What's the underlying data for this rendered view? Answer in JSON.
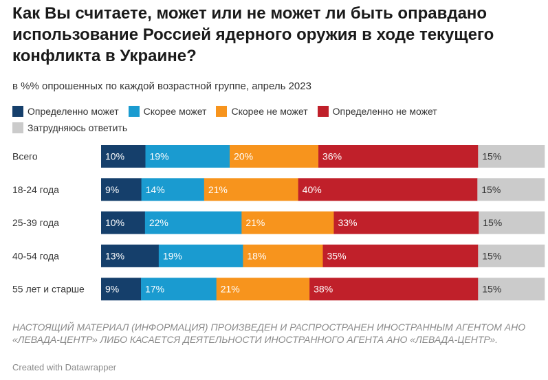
{
  "title": "Как Вы считаете, может или не может ли быть оправдано использование Россией ядерного оружия в ходе текущего конфликта в Украине?",
  "subtitle": "в %% опрошенных по каждой возрастной группе, апрель 2023",
  "footnote": "НАСТОЯЩИЙ МАТЕРИАЛ (ИНФОРМАЦИЯ) ПРОИЗВЕДЕН И РАСПРОСТРАНЕН ИНОСТРАННЫМ АГЕНТОМ АНО «ЛЕВАДА-ЦЕНТР» ЛИБО КАСАЕТСЯ ДЕЯТЕЛЬНОСТИ ИНОСТРАННОГО АГЕНТА АНО «ЛЕВАДА-ЦЕНТР».",
  "credit": "Created with Datawrapper",
  "chart_data": {
    "type": "bar",
    "orientation": "horizontal",
    "stacked": true,
    "value_suffix": "%",
    "categories": [
      "Всего",
      "18-24 года",
      "25-39 года",
      "40-54 года",
      "55 лет и старше"
    ],
    "series": [
      {
        "name": "Определенно может",
        "color": "#153f6b",
        "text_color": "#ffffff",
        "values": [
          10,
          9,
          10,
          13,
          9
        ]
      },
      {
        "name": "Скорее может",
        "color": "#1a9bd0",
        "text_color": "#ffffff",
        "values": [
          19,
          14,
          22,
          19,
          17
        ]
      },
      {
        "name": "Скорее не может",
        "color": "#f7941d",
        "text_color": "#ffffff",
        "values": [
          20,
          21,
          21,
          18,
          21
        ]
      },
      {
        "name": "Определенно не может",
        "color": "#c0202a",
        "text_color": "#ffffff",
        "values": [
          36,
          40,
          33,
          35,
          38
        ]
      },
      {
        "name": "Затрудняюсь ответить",
        "color": "#cbcbcb",
        "text_color": "#333333",
        "values": [
          15,
          15,
          15,
          15,
          15
        ]
      }
    ],
    "legend_position": "top-left",
    "grid": false
  }
}
